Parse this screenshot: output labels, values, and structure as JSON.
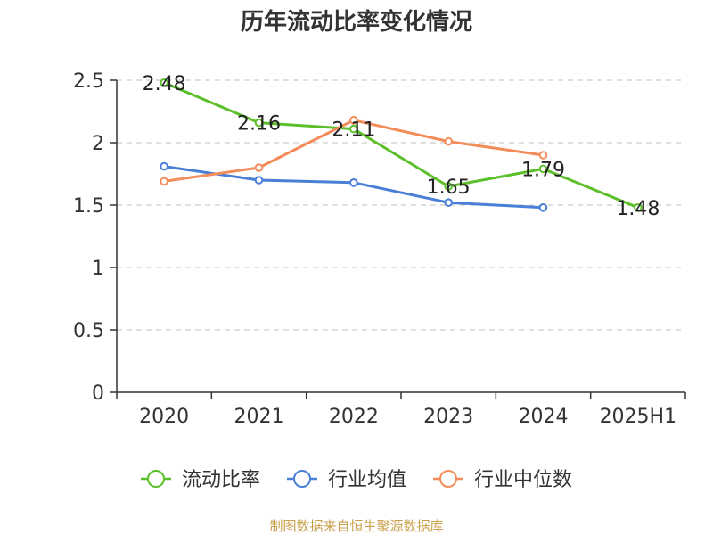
{
  "chart_data": {
    "type": "line",
    "title": "历年流动比率变化情况",
    "xlabel": "",
    "ylabel": "",
    "categories": [
      "2020",
      "2021",
      "2022",
      "2023",
      "2024",
      "2025H1"
    ],
    "ylim": [
      0,
      2.5
    ],
    "yticks": [
      "0",
      "0.5",
      "1",
      "1.5",
      "2",
      "2.5"
    ],
    "grid": true,
    "legend_position": "bottom",
    "series": [
      {
        "name": "流动比率",
        "color": "#5cbf2a",
        "labels": true,
        "values": [
          2.48,
          2.16,
          2.11,
          1.65,
          1.79,
          1.48
        ],
        "value_labels": [
          "2.48",
          "2.16",
          "2.11",
          "1.65",
          "1.79",
          "1.48"
        ]
      },
      {
        "name": "行业均值",
        "color": "#4a7fd8",
        "labels": false,
        "values": [
          1.81,
          1.7,
          1.68,
          1.52,
          1.48,
          null
        ]
      },
      {
        "name": "行业中位数",
        "color": "#f28c5a",
        "labels": false,
        "values": [
          1.69,
          1.8,
          2.18,
          2.01,
          1.9,
          null
        ]
      }
    ]
  },
  "source_note": "制图数据来自恒生聚源数据库"
}
